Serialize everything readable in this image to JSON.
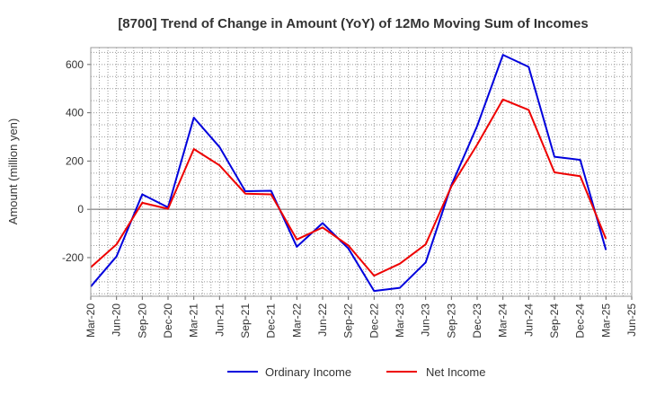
{
  "chart_data": {
    "type": "line",
    "title": "[8700]  Trend of Change in Amount (YoY) of 12Mo Moving Sum of Incomes",
    "xlabel": "",
    "ylabel": "Amount (million yen)",
    "ylim": [
      -360,
      670
    ],
    "yticks": [
      -200,
      0,
      200,
      400,
      600
    ],
    "grid": true,
    "legend_position": "bottom",
    "categories": [
      "Mar-20",
      "Jun-20",
      "Sep-20",
      "Dec-20",
      "Mar-21",
      "Jun-21",
      "Sep-21",
      "Dec-21",
      "Mar-22",
      "Jun-22",
      "Sep-22",
      "Dec-22",
      "Mar-23",
      "Jun-23",
      "Sep-23",
      "Dec-23",
      "Mar-24",
      "Jun-24",
      "Sep-24",
      "Dec-24",
      "Mar-25",
      "Jun-25"
    ],
    "series": [
      {
        "name": "Ordinary Income",
        "color": "#0000dd",
        "values": [
          -320,
          -195,
          62,
          8,
          380,
          258,
          75,
          77,
          -155,
          -57,
          -162,
          -338,
          -325,
          -220,
          100,
          345,
          640,
          590,
          218,
          205,
          -168,
          null
        ]
      },
      {
        "name": "Net Income",
        "color": "#ee0000",
        "values": [
          -240,
          -145,
          27,
          2,
          250,
          182,
          65,
          62,
          -125,
          -75,
          -150,
          -275,
          -225,
          -145,
          95,
          268,
          455,
          412,
          153,
          137,
          -122,
          null
        ]
      }
    ]
  }
}
